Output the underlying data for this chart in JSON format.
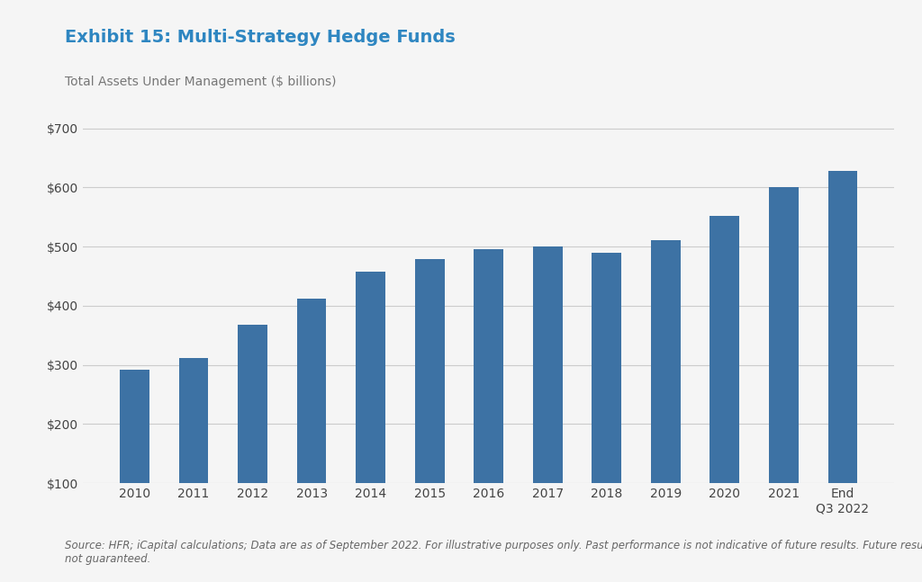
{
  "title": "Exhibit 15: Multi-Strategy Hedge Funds",
  "subtitle": "Total Assets Under Management ($ billions)",
  "categories": [
    "2010",
    "2011",
    "2012",
    "2013",
    "2014",
    "2015",
    "2016",
    "2017",
    "2018",
    "2019",
    "2020",
    "2021",
    "End\nQ3 2022"
  ],
  "values": [
    292,
    312,
    368,
    412,
    458,
    478,
    496,
    500,
    490,
    510,
    552,
    600,
    628
  ],
  "bar_color": "#3D72A4",
  "background_color": "#F5F5F5",
  "ylim": [
    100,
    720
  ],
  "yticks": [
    100,
    200,
    300,
    400,
    500,
    600,
    700
  ],
  "ytick_labels": [
    "$100",
    "$200",
    "$300",
    "$400",
    "$500",
    "$600",
    "$700"
  ],
  "grid_color": "#CCCCCC",
  "title_color": "#2E86C1",
  "subtitle_color": "#777777",
  "footnote": "Source: HFR; iCapital calculations; Data are as of September 2022. For illustrative purposes only. Past performance is not indicative of future results. Future results are\nnot guaranteed.",
  "title_fontsize": 14,
  "subtitle_fontsize": 10,
  "tick_fontsize": 10,
  "footnote_fontsize": 8.5,
  "bar_width": 0.5
}
